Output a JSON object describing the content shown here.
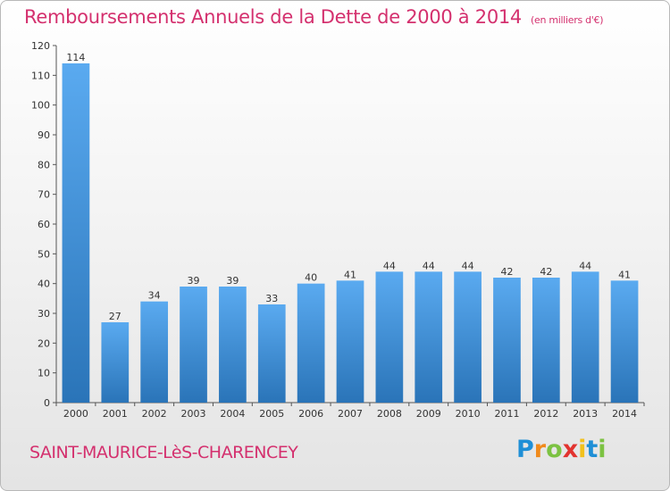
{
  "chart_data": {
    "type": "bar",
    "title": "Remboursements Annuels de la Dette de 2000 à 2014",
    "unit_note": "(en milliers d'€)",
    "categories": [
      "2000",
      "2001",
      "2002",
      "2003",
      "2004",
      "2005",
      "2006",
      "2007",
      "2008",
      "2009",
      "2010",
      "2011",
      "2012",
      "2013",
      "2014"
    ],
    "values": [
      114,
      27,
      34,
      39,
      39,
      33,
      40,
      41,
      44,
      44,
      44,
      42,
      42,
      44,
      41
    ],
    "ylim": [
      0,
      120
    ],
    "yticks": [
      0,
      10,
      20,
      30,
      40,
      50,
      60,
      70,
      80,
      90,
      100,
      110,
      120
    ],
    "xlabel": "",
    "ylabel": "",
    "grid": false,
    "bar_color_top": "#5aaaf0",
    "bar_color_bottom": "#2a74b8"
  },
  "commune": "SAINT-MAURICE-LèS-CHARENCEY",
  "brand": {
    "letters": [
      "P",
      "r",
      "o",
      "x",
      "i",
      "t",
      "i"
    ],
    "colors": [
      "#1f8fd6",
      "#f08a1c",
      "#7cc242",
      "#e2332f",
      "#f2c11c",
      "#1f8fd6",
      "#7cc242"
    ]
  },
  "colors": {
    "title": "#d4306e",
    "axis": "#555555",
    "text": "#333333"
  }
}
